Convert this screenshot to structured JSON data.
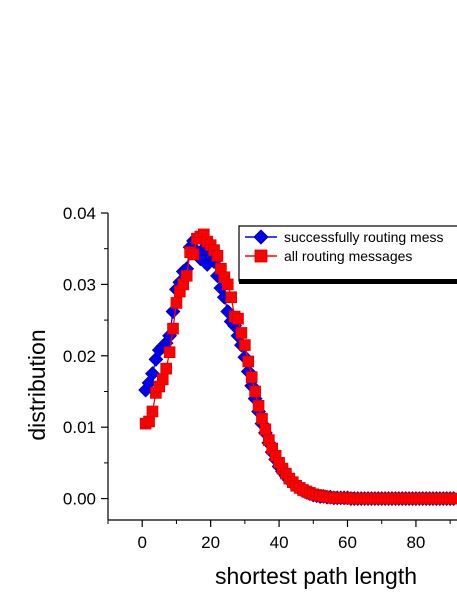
{
  "chart_data": {
    "type": "line",
    "xlabel": "shortest path length",
    "ylabel": "distribution",
    "xlim": [
      -10,
      92
    ],
    "ylim": [
      -0.003,
      0.04
    ],
    "x_ticks": [
      0,
      20,
      40,
      60,
      80
    ],
    "x_tick_labels": [
      "0",
      "20",
      "40",
      "60",
      "80"
    ],
    "y_ticks": [
      0.0,
      0.01,
      0.02,
      0.03,
      0.04
    ],
    "y_tick_labels": [
      "0.00",
      "0.01",
      "0.02",
      "0.03",
      "0.04"
    ],
    "legend_position": "top-right",
    "series": [
      {
        "name": "successfully routing mess",
        "color": "#0000ee",
        "marker": "diamond",
        "x": [
          1,
          2,
          3,
          4,
          5,
          6,
          7,
          8,
          9,
          10,
          11,
          12,
          13,
          14,
          15,
          16,
          17,
          18,
          19,
          20,
          21,
          22,
          23,
          24,
          25,
          26,
          27,
          28,
          29,
          30,
          31,
          32,
          33,
          34,
          35,
          36,
          37,
          38,
          39,
          40,
          41,
          42,
          43,
          44,
          45,
          46,
          47,
          48,
          49,
          50,
          51,
          52,
          53,
          54,
          55,
          56,
          57,
          58,
          59,
          60,
          61,
          62,
          63,
          64,
          65,
          66,
          67,
          68,
          69,
          70,
          71,
          72,
          73,
          74,
          75,
          76,
          77,
          78,
          79,
          80,
          81,
          82,
          83,
          84,
          85,
          86,
          87,
          88,
          89,
          90,
          91
        ],
        "values": [
          0.0152,
          0.0162,
          0.0175,
          0.0195,
          0.0208,
          0.0213,
          0.0218,
          0.0228,
          0.0262,
          0.0293,
          0.0303,
          0.0318,
          0.0322,
          0.0352,
          0.0361,
          0.0346,
          0.0336,
          0.035,
          0.0328,
          0.034,
          0.0332,
          0.0312,
          0.0295,
          0.0282,
          0.0262,
          0.0248,
          0.0242,
          0.0228,
          0.0215,
          0.0198,
          0.0178,
          0.0158,
          0.014,
          0.0122,
          0.0105,
          0.0092,
          0.0078,
          0.0065,
          0.0055,
          0.0045,
          0.0038,
          0.0032,
          0.0026,
          0.0021,
          0.0017,
          0.0014,
          0.0011,
          0.0009,
          0.0007,
          0.0005,
          0.0004,
          0.0003,
          0.0003,
          0.0002,
          0.0002,
          0.0001,
          0.0001,
          0.0001,
          0.0001,
          0.0001,
          0.0,
          0.0,
          0.0,
          0.0,
          0.0,
          0.0,
          0.0,
          0.0,
          0.0,
          0.0,
          0.0,
          0.0,
          0.0,
          0.0,
          0.0,
          0.0,
          0.0,
          0.0,
          0.0,
          0.0,
          0.0,
          0.0,
          0.0,
          0.0,
          0.0,
          0.0,
          0.0,
          0.0,
          0.0,
          0.0,
          0.0
        ]
      },
      {
        "name": "all routing messages",
        "color": "#ff0000",
        "marker": "square",
        "x": [
          1,
          2,
          3,
          4,
          5,
          6,
          7,
          8,
          9,
          10,
          11,
          12,
          13,
          14,
          15,
          16,
          17,
          18,
          19,
          20,
          21,
          22,
          23,
          24,
          25,
          26,
          27,
          28,
          29,
          30,
          31,
          32,
          33,
          34,
          35,
          36,
          37,
          38,
          39,
          40,
          41,
          42,
          43,
          44,
          45,
          46,
          47,
          48,
          49,
          50,
          51,
          52,
          53,
          54,
          55,
          56,
          57,
          58,
          59,
          60,
          61,
          62,
          63,
          64,
          65,
          66,
          67,
          68,
          69,
          70,
          71,
          72,
          73,
          74,
          75,
          76,
          77,
          78,
          79,
          80,
          81,
          82,
          83,
          84,
          85,
          86,
          87,
          88,
          89,
          90,
          91
        ],
        "values": [
          0.0105,
          0.0108,
          0.0122,
          0.0148,
          0.0157,
          0.0167,
          0.0182,
          0.0205,
          0.0238,
          0.0274,
          0.029,
          0.03,
          0.0312,
          0.0345,
          0.0342,
          0.0364,
          0.0367,
          0.037,
          0.036,
          0.0355,
          0.0348,
          0.034,
          0.0322,
          0.031,
          0.03,
          0.0282,
          0.0255,
          0.0252,
          0.0232,
          0.0215,
          0.0192,
          0.017,
          0.015,
          0.013,
          0.0112,
          0.0097,
          0.0082,
          0.007,
          0.006,
          0.005,
          0.0042,
          0.0035,
          0.0028,
          0.0023,
          0.0018,
          0.0015,
          0.0012,
          0.001,
          0.0008,
          0.0006,
          0.0005,
          0.0004,
          0.0003,
          0.0002,
          0.0002,
          0.0001,
          0.0001,
          0.0001,
          0.0001,
          0.0001,
          0.0,
          0.0,
          0.0,
          0.0,
          0.0,
          0.0,
          0.0,
          0.0,
          0.0,
          0.0,
          0.0,
          0.0,
          0.0,
          0.0,
          0.0,
          0.0,
          0.0,
          0.0,
          0.0,
          0.0,
          0.0,
          0.0,
          0.0,
          0.0,
          0.0,
          0.0,
          0.0,
          0.0,
          0.0,
          0.0,
          0.0
        ]
      }
    ]
  }
}
